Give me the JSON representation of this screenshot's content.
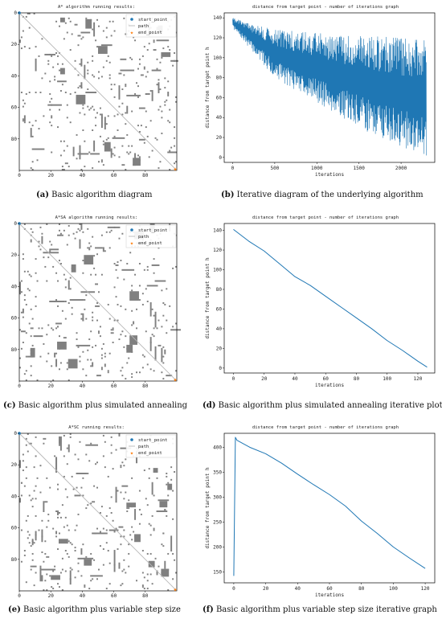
{
  "colors": {
    "obstacle": "#808080",
    "path_line": "#b8b8b8",
    "start": "#1f77b4",
    "end": "#ff7f0e",
    "series": "#1f77b4",
    "border": "#000000"
  },
  "legend": {
    "start": "start_point",
    "path": "path",
    "end": "end_point"
  },
  "captions": [
    {
      "label": "(a)",
      "text": " Basic algorithm diagram"
    },
    {
      "label": "(b)",
      "text": " Iterative diagram of the underlying algorithm"
    },
    {
      "label": "(c)",
      "text": " Basic algorithm plus simulated annealing"
    },
    {
      "label": "(d)",
      "text": " Basic algorithm plus simulated annealing iterative plot"
    },
    {
      "label": "(e)",
      "text": " Basic algorithm plus variable step size"
    },
    {
      "label": "(f)",
      "text": " Basic algorithm plus variable step size iterative graph"
    }
  ],
  "chart_data": [
    {
      "type": "scatter",
      "panel": "a",
      "title": "A* algorithm running results:",
      "xlim": [
        0,
        100
      ],
      "ylim": [
        0,
        100
      ],
      "xticks": [
        0,
        20,
        40,
        60,
        80
      ],
      "yticks": [
        0,
        20,
        40,
        60,
        80
      ],
      "start_point": [
        0,
        0
      ],
      "end_point": [
        99,
        99
      ],
      "path": [
        [
          0,
          0
        ],
        [
          99,
          99
        ]
      ],
      "obstacle_seed": 11
    },
    {
      "type": "line",
      "panel": "b",
      "title": "distance from target point - number of iterations graph",
      "xlabel": "iterations",
      "ylabel": "distance from target point h",
      "xlim": [
        -100,
        2400
      ],
      "ylim": [
        -5,
        145
      ],
      "xticks": [
        0,
        500,
        1000,
        1500,
        2000
      ],
      "yticks": [
        0,
        20,
        40,
        60,
        80,
        100,
        120,
        140
      ],
      "n_points": 2300,
      "envelope_upper": [
        [
          0,
          140
        ],
        [
          500,
          128
        ],
        [
          1000,
          125
        ],
        [
          1500,
          122
        ],
        [
          2300,
          120
        ]
      ],
      "envelope_lower": [
        [
          0,
          130
        ],
        [
          500,
          80
        ],
        [
          1000,
          55
        ],
        [
          1500,
          30
        ],
        [
          2000,
          10
        ],
        [
          2300,
          2
        ]
      ],
      "last_value": 2
    },
    {
      "type": "scatter",
      "panel": "c",
      "title": "A*SA algorithm running results:",
      "xlim": [
        0,
        100
      ],
      "ylim": [
        0,
        100
      ],
      "xticks": [
        0,
        20,
        40,
        60,
        80
      ],
      "yticks": [
        0,
        20,
        40,
        60,
        80
      ],
      "start_point": [
        0,
        0
      ],
      "end_point": [
        99,
        99
      ],
      "path": [
        [
          0,
          0
        ],
        [
          99,
          99
        ]
      ],
      "obstacle_seed": 23
    },
    {
      "type": "line",
      "panel": "d",
      "title": "distance from target point - number of iterations graph",
      "xlabel": "iterations",
      "ylabel": "distance from target point h",
      "xlim": [
        -6,
        131
      ],
      "ylim": [
        -5,
        147
      ],
      "xticks": [
        0,
        20,
        40,
        60,
        80,
        100,
        120
      ],
      "yticks": [
        0,
        20,
        40,
        60,
        80,
        100,
        120,
        140
      ],
      "x": [
        0,
        10,
        20,
        30,
        40,
        50,
        60,
        70,
        80,
        90,
        100,
        110,
        120,
        126
      ],
      "y": [
        141,
        129,
        119,
        106,
        93,
        84,
        73,
        62,
        51,
        40,
        28,
        18,
        7,
        1
      ]
    },
    {
      "type": "scatter",
      "panel": "e",
      "title": "A*SC running results:",
      "xlim": [
        0,
        100
      ],
      "ylim": [
        0,
        100
      ],
      "xticks": [
        0,
        20,
        40,
        60,
        80
      ],
      "yticks": [
        0,
        20,
        40,
        60,
        80
      ],
      "start_point": [
        0,
        0
      ],
      "end_point": [
        99,
        99
      ],
      "path": [
        [
          0,
          0
        ],
        [
          99,
          99
        ]
      ],
      "obstacle_seed": 37
    },
    {
      "type": "line",
      "panel": "f",
      "title": "distance from target point - number of iterations graph",
      "xlabel": "iterations",
      "ylabel": "distance from target point h",
      "xlim": [
        -6,
        126
      ],
      "ylim": [
        128,
        428
      ],
      "xticks": [
        0,
        20,
        40,
        60,
        80,
        100,
        120
      ],
      "yticks": [
        150,
        200,
        250,
        300,
        350,
        400
      ],
      "x": [
        0,
        1,
        2,
        10,
        20,
        30,
        40,
        50,
        60,
        70,
        80,
        90,
        100,
        110,
        120
      ],
      "y": [
        142,
        420,
        414,
        400,
        387,
        368,
        346,
        325,
        305,
        282,
        252,
        227,
        200,
        178,
        157
      ]
    }
  ]
}
